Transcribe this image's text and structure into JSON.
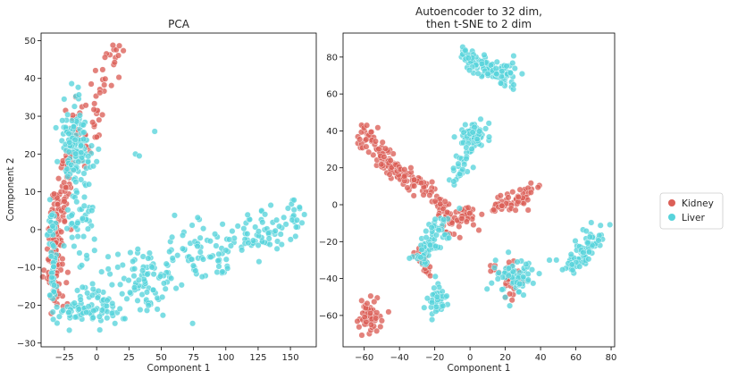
{
  "chart_data": [
    {
      "type": "scatter",
      "title": "PCA",
      "xlabel": "Component 1",
      "ylabel": "Component 2",
      "xlim": [
        -43,
        170
      ],
      "ylim": [
        -31,
        52
      ],
      "xticks": [
        -25,
        0,
        25,
        50,
        75,
        100,
        125,
        150
      ],
      "yticks": [
        -30,
        -20,
        -10,
        0,
        10,
        20,
        30,
        40,
        50
      ],
      "grid": false,
      "clusters": [
        {
          "series": "Kidney",
          "kind": "arm",
          "from": [
            -35,
            -15
          ],
          "to": [
            -29,
            10
          ],
          "n": 90,
          "spread": 2.5
        },
        {
          "series": "Kidney",
          "kind": "arm",
          "from": [
            -27,
            5
          ],
          "to": [
            -16,
            30
          ],
          "n": 70,
          "spread": 3
        },
        {
          "series": "Kidney",
          "kind": "arm",
          "from": [
            -10,
            20
          ],
          "to": [
            15,
            46
          ],
          "n": 45,
          "spread": 3
        },
        {
          "series": "Kidney",
          "kind": "blob",
          "center": [
            -30,
            -10
          ],
          "sd": [
            3,
            6
          ],
          "n": 35
        },
        {
          "series": "Liver",
          "kind": "blob",
          "center": [
            -16,
            22
          ],
          "sd": [
            5,
            6
          ],
          "n": 150
        },
        {
          "series": "Liver",
          "kind": "arm",
          "from": [
            -34,
            -21
          ],
          "to": [
            -34,
            5
          ],
          "n": 60,
          "spread": 1.5
        },
        {
          "series": "Liver",
          "kind": "arm",
          "from": [
            -34,
            -22
          ],
          "to": [
            20,
            -22
          ],
          "n": 55,
          "spread": 1.5
        },
        {
          "series": "Liver",
          "kind": "arm",
          "from": [
            -15,
            -18
          ],
          "to": [
            80,
            -5
          ],
          "n": 110,
          "spread": 5
        },
        {
          "series": "Liver",
          "kind": "arm",
          "from": [
            75,
            -8
          ],
          "to": [
            160,
            3
          ],
          "n": 120,
          "spread": 3
        },
        {
          "series": "Liver",
          "kind": "blob",
          "center": [
            40,
            -15
          ],
          "sd": [
            10,
            4
          ],
          "n": 40
        },
        {
          "series": "Liver",
          "kind": "blob",
          "center": [
            -12,
            2
          ],
          "sd": [
            6,
            5
          ],
          "n": 40
        },
        {
          "series": "Liver",
          "kind": "points",
          "points": [
            [
              45,
              26
            ],
            [
              30,
              20
            ],
            [
              33,
              19.5
            ],
            [
              -6,
              12
            ],
            [
              0,
              18
            ]
          ]
        }
      ]
    },
    {
      "type": "scatter",
      "title": "Autoencoder to 32 dim,\nthen t-SNE to 2 dim",
      "xlabel": "Component 1",
      "ylabel": "",
      "xlim": [
        -72,
        82
      ],
      "ylim": [
        -77,
        93
      ],
      "xticks": [
        -60,
        -40,
        -20,
        0,
        20,
        40,
        60,
        80
      ],
      "yticks": [
        -60,
        -40,
        -20,
        0,
        20,
        40,
        60,
        80
      ],
      "grid": false,
      "clusters": [
        {
          "series": "Kidney",
          "kind": "arm",
          "from": [
            -60,
            40
          ],
          "to": [
            -46,
            22
          ],
          "n": 70,
          "spread": 3
        },
        {
          "series": "Kidney",
          "kind": "arm",
          "from": [
            -48,
            22
          ],
          "to": [
            -20,
            6
          ],
          "n": 80,
          "spread": 3
        },
        {
          "series": "Kidney",
          "kind": "arm",
          "from": [
            -20,
            6
          ],
          "to": [
            -8,
            -15
          ],
          "n": 40,
          "spread": 2.5
        },
        {
          "series": "Kidney",
          "kind": "arm",
          "from": [
            -28,
            -25
          ],
          "to": [
            -24,
            -38
          ],
          "n": 25,
          "spread": 2
        },
        {
          "series": "Kidney",
          "kind": "blob",
          "center": [
            -2,
            -7
          ],
          "sd": [
            3,
            3
          ],
          "n": 30
        },
        {
          "series": "Kidney",
          "kind": "arm",
          "from": [
            12,
            -3
          ],
          "to": [
            36,
            7
          ],
          "n": 60,
          "spread": 2.5
        },
        {
          "series": "Kidney",
          "kind": "blob",
          "center": [
            -58,
            -60
          ],
          "sd": [
            3,
            4
          ],
          "n": 60
        },
        {
          "series": "Kidney",
          "kind": "blob",
          "center": [
            22,
            -40
          ],
          "sd": [
            4,
            5
          ],
          "n": 35
        },
        {
          "series": "Liver",
          "kind": "arm",
          "from": [
            -4,
            81
          ],
          "to": [
            26,
            68
          ],
          "n": 110,
          "spread": 3
        },
        {
          "series": "Liver",
          "kind": "blob",
          "center": [
            3,
            38
          ],
          "sd": [
            5,
            4
          ],
          "n": 60
        },
        {
          "series": "Liver",
          "kind": "arm",
          "from": [
            -10,
            12
          ],
          "to": [
            0,
            30
          ],
          "n": 30,
          "spread": 2
        },
        {
          "series": "Liver",
          "kind": "arm",
          "from": [
            -28,
            -32
          ],
          "to": [
            -15,
            -8
          ],
          "n": 70,
          "spread": 3
        },
        {
          "series": "Liver",
          "kind": "blob",
          "center": [
            -19,
            -52
          ],
          "sd": [
            2.5,
            5
          ],
          "n": 40
        },
        {
          "series": "Liver",
          "kind": "blob",
          "center": [
            25,
            -40
          ],
          "sd": [
            6,
            5
          ],
          "n": 70
        },
        {
          "series": "Liver",
          "kind": "arm",
          "from": [
            56,
            -34
          ],
          "to": [
            74,
            -15
          ],
          "n": 80,
          "spread": 3
        },
        {
          "series": "Liver",
          "kind": "points",
          "points": [
            [
              45,
              -30
            ],
            [
              -12,
              -18
            ],
            [
              -6,
              -2
            ]
          ]
        }
      ]
    }
  ],
  "legend": {
    "placement": "right",
    "entries": [
      {
        "label": "Kidney",
        "color": "#db5f57"
      },
      {
        "label": "Liver",
        "color": "#57d3db"
      }
    ]
  },
  "colors": {
    "Kidney": "#db5f57",
    "Liver": "#57d3db"
  }
}
